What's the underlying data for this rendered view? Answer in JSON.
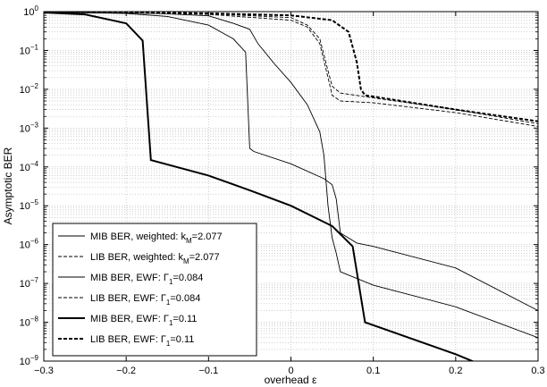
{
  "chart_data": {
    "type": "line",
    "xlabel": "overhead ε",
    "ylabel": "Asymptotic BER",
    "xlim": [
      -0.3,
      0.3
    ],
    "ylim": [
      1e-09,
      1
    ],
    "yscale": "log",
    "grid": true,
    "legend_position": "bottom-left",
    "x_ticks": [
      -0.3,
      -0.2,
      -0.1,
      0,
      0.1,
      0.2,
      0.3
    ],
    "x_tick_labels": [
      "−0.3",
      "−0.2",
      "−0.1",
      "0",
      "0.1",
      "0.2",
      "0.3"
    ],
    "y_tick_exponents": [
      -9,
      -8,
      -7,
      -6,
      -5,
      -4,
      -3,
      -2,
      -1,
      0
    ],
    "y_tick_base": "10",
    "series": [
      {
        "name": "MIB BER, weighted: k_M=2.077",
        "legend_parts": [
          "MIB BER, weighted: k",
          "M",
          "=2.077"
        ],
        "style": "solid",
        "weight": "thin",
        "points": [
          [
            -0.3,
            0.95
          ],
          [
            -0.2,
            0.93
          ],
          [
            -0.15,
            0.88
          ],
          [
            -0.1,
            0.78
          ],
          [
            -0.07,
            0.5
          ],
          [
            -0.05,
            0.35
          ],
          [
            -0.04,
            0.15
          ],
          [
            -0.02,
            0.045
          ],
          [
            0,
            0.015
          ],
          [
            0.02,
            0.004
          ],
          [
            0.035,
            0.0008
          ],
          [
            0.04,
            0.0002
          ],
          [
            0.045,
            1e-05
          ],
          [
            0.05,
            1.5e-06
          ],
          [
            0.055,
            6e-07
          ],
          [
            0.06,
            2e-07
          ],
          [
            0.1,
            9e-08
          ],
          [
            0.2,
            2.5e-08
          ],
          [
            0.3,
            4e-09
          ]
        ]
      },
      {
        "name": "LIB BER, weighted: k_M=2.077",
        "legend_parts": [
          "LIB BER, weighted: k",
          "M",
          "=2.077"
        ],
        "style": "dashed",
        "weight": "thin",
        "points": [
          [
            -0.3,
            0.98
          ],
          [
            -0.2,
            0.95
          ],
          [
            -0.1,
            0.85
          ],
          [
            0,
            0.6
          ],
          [
            0.02,
            0.4
          ],
          [
            0.035,
            0.15
          ],
          [
            0.045,
            0.02
          ],
          [
            0.05,
            0.007
          ],
          [
            0.06,
            0.005
          ],
          [
            0.1,
            0.0045
          ],
          [
            0.2,
            0.0025
          ],
          [
            0.3,
            0.0011
          ]
        ]
      },
      {
        "name": "MIB BER, EWF: Γ_1=0.084",
        "legend_parts": [
          "MIB BER, EWF: Γ",
          "1",
          "=0.084"
        ],
        "style": "solid",
        "weight": "thin",
        "points": [
          [
            -0.3,
            0.95
          ],
          [
            -0.25,
            0.94
          ],
          [
            -0.2,
            0.9
          ],
          [
            -0.15,
            0.75
          ],
          [
            -0.1,
            0.45
          ],
          [
            -0.07,
            0.2
          ],
          [
            -0.055,
            0.09
          ],
          [
            -0.05,
            0.0003
          ],
          [
            -0.045,
            0.00025
          ],
          [
            0,
            0.00012
          ],
          [
            0.04,
            5e-05
          ],
          [
            0.05,
            3.5e-05
          ],
          [
            0.055,
            1.5e-05
          ],
          [
            0.06,
            2e-06
          ],
          [
            0.08,
            1.1e-06
          ],
          [
            0.1,
            9e-07
          ],
          [
            0.2,
            2.5e-07
          ],
          [
            0.3,
            2e-08
          ]
        ]
      },
      {
        "name": "LIB BER, EWF: Γ_1=0.084",
        "legend_parts": [
          "LIB BER, EWF: Γ",
          "1",
          "=0.084"
        ],
        "style": "dashed",
        "weight": "thin",
        "points": [
          [
            -0.3,
            0.98
          ],
          [
            -0.2,
            0.96
          ],
          [
            -0.1,
            0.88
          ],
          [
            0,
            0.7
          ],
          [
            0.02,
            0.45
          ],
          [
            0.035,
            0.2
          ],
          [
            0.045,
            0.03
          ],
          [
            0.05,
            0.012
          ],
          [
            0.06,
            0.008
          ],
          [
            0.1,
            0.006
          ],
          [
            0.2,
            0.003
          ],
          [
            0.3,
            0.0013
          ]
        ]
      },
      {
        "name": "MIB BER, EWF: Γ_1=0.11",
        "legend_parts": [
          "MIB BER, EWF: Γ",
          "1",
          "=0.11"
        ],
        "style": "solid",
        "weight": "thick",
        "points": [
          [
            -0.3,
            0.95
          ],
          [
            -0.25,
            0.85
          ],
          [
            -0.2,
            0.5
          ],
          [
            -0.18,
            0.18
          ],
          [
            -0.17,
            0.00015
          ],
          [
            -0.1,
            6e-05
          ],
          [
            -0.05,
            2.5e-05
          ],
          [
            0,
            1e-05
          ],
          [
            0.05,
            3e-06
          ],
          [
            0.075,
            9e-07
          ],
          [
            0.09,
            1e-08
          ],
          [
            0.2,
            1.5e-09
          ],
          [
            0.3,
            2e-10
          ]
        ]
      },
      {
        "name": "LIB BER, EWF: Γ_1=0.11",
        "legend_parts": [
          "LIB BER, EWF: Γ",
          "1",
          "=0.11"
        ],
        "style": "dashed",
        "weight": "thick",
        "points": [
          [
            -0.3,
            0.98
          ],
          [
            -0.2,
            0.96
          ],
          [
            -0.1,
            0.9
          ],
          [
            0,
            0.8
          ],
          [
            0.05,
            0.6
          ],
          [
            0.07,
            0.3
          ],
          [
            0.08,
            0.05
          ],
          [
            0.085,
            0.01
          ],
          [
            0.09,
            0.007
          ],
          [
            0.1,
            0.0065
          ],
          [
            0.2,
            0.003
          ],
          [
            0.3,
            0.0015
          ]
        ]
      }
    ]
  }
}
